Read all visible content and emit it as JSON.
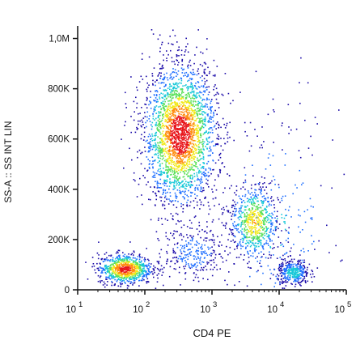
{
  "chart_data": {
    "type": "scatter",
    "xlabel": "CD4 PE",
    "ylabel": "SS-A :: SS INT LIN",
    "x_scale": "log",
    "xlim": [
      10,
      100000
    ],
    "ylim": [
      0,
      1050000
    ],
    "x_ticks": [
      {
        "value": 10,
        "base": "10",
        "exp": "1"
      },
      {
        "value": 100,
        "base": "10",
        "exp": "2"
      },
      {
        "value": 1000,
        "base": "10",
        "exp": "3"
      },
      {
        "value": 10000,
        "base": "10",
        "exp": "4"
      },
      {
        "value": 100000,
        "base": "10",
        "exp": "5"
      }
    ],
    "y_ticks": [
      {
        "value": 0,
        "label": "0"
      },
      {
        "value": 200000,
        "label": "200K"
      },
      {
        "value": 400000,
        "label": "400K"
      },
      {
        "value": 600000,
        "label": "600K"
      },
      {
        "value": 800000,
        "label": "800K"
      },
      {
        "value": 1000000,
        "label": "1,0M"
      }
    ],
    "grid": false,
    "legend": "none",
    "color_scale": [
      "#1a0aa8",
      "#1f6fff",
      "#17c8d8",
      "#5ae05a",
      "#f2e81a",
      "#ff8c10",
      "#e8141a"
    ],
    "populations": [
      {
        "x_center": 330,
        "x_sd_dec": 0.27,
        "y_center": 620000,
        "y_sd": 140000,
        "count": 2600
      },
      {
        "x_center": 520,
        "x_sd_dec": 0.22,
        "y_center": 150000,
        "y_sd": 50000,
        "count": 260
      },
      {
        "x_center": 4200,
        "x_sd_dec": 0.18,
        "y_center": 270000,
        "y_sd": 75000,
        "count": 650
      },
      {
        "x_center": 50,
        "x_sd_dec": 0.2,
        "y_center": 85000,
        "y_sd": 30000,
        "count": 850
      },
      {
        "x_center": 16000,
        "x_sd_dec": 0.12,
        "y_center": 70000,
        "y_sd": 26000,
        "count": 360
      },
      {
        "x_center": 8000,
        "x_sd_dec": 0.5,
        "y_center": 260000,
        "y_sd": 240000,
        "count": 280
      }
    ],
    "dot_count": 5000
  }
}
